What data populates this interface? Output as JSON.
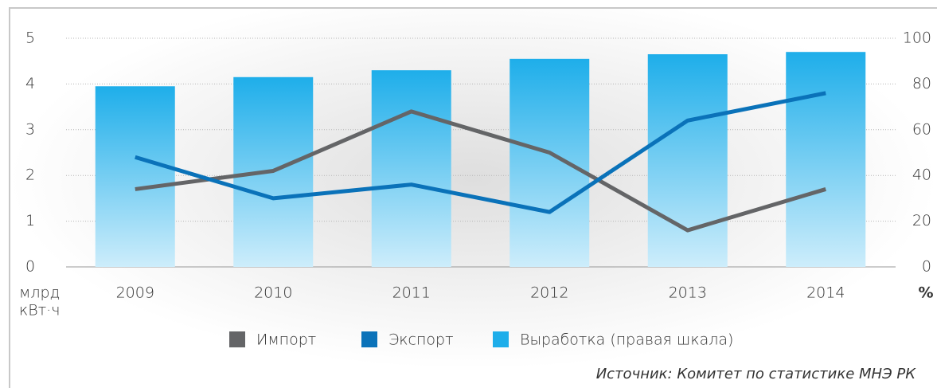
{
  "chart_data": {
    "type": "bar_line",
    "categories": [
      "2009",
      "2010",
      "2011",
      "2012",
      "2013",
      "2014"
    ],
    "series": [
      {
        "name": "Импорт",
        "type": "line",
        "color": "#646567",
        "values": [
          1.7,
          2.1,
          3.4,
          2.5,
          0.8,
          1.7
        ]
      },
      {
        "name": "Экспорт",
        "type": "line",
        "color": "#0a72b9",
        "values": [
          2.4,
          1.5,
          1.8,
          1.2,
          3.2,
          3.8
        ]
      },
      {
        "name": "Выработка (правая шкала)",
        "type": "bar",
        "axis": "y2",
        "color": "#1eaeea",
        "values": [
          79,
          83,
          86,
          91,
          93,
          94
        ]
      }
    ],
    "ylim": [
      0,
      5
    ],
    "yticks": [
      0,
      1,
      2,
      3,
      4,
      5
    ],
    "y2lim": [
      0,
      100
    ],
    "y2ticks": [
      0,
      20,
      40,
      60,
      80,
      100
    ],
    "y_label": [
      "млрд",
      "кВт·ч"
    ],
    "y2_label": "%",
    "grid": true,
    "legend": "bottom",
    "source": "Источник: Комитет по статистике МНЭ РК"
  }
}
